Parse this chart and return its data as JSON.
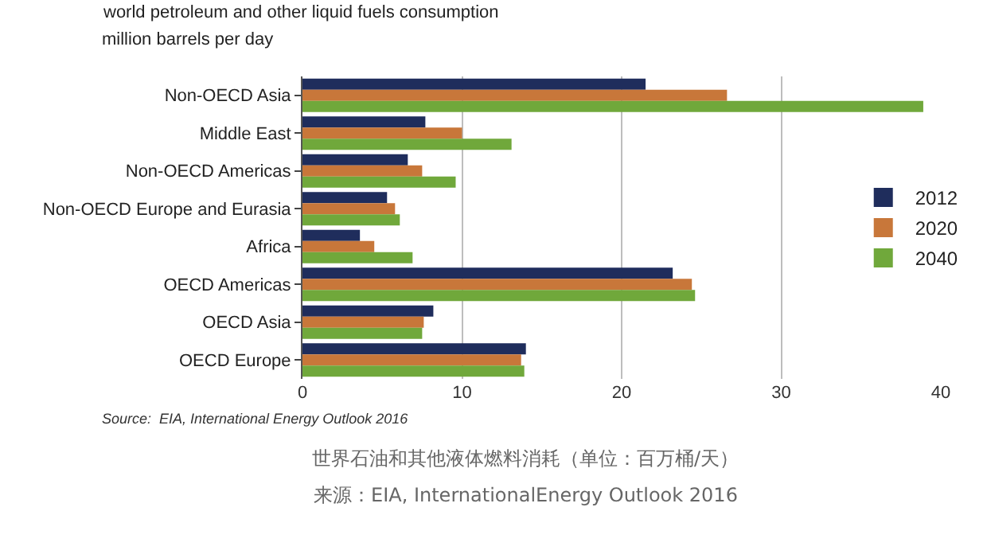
{
  "chart_data": {
    "type": "bar",
    "orientation": "horizontal",
    "title": "world petroleum and other liquid fuels consumption",
    "subtitle": "million barrels per day",
    "categories": [
      "Non-OECD Asia",
      "Middle East",
      "Non-OECD Americas",
      "Non-OECD Europe and Eurasia",
      "Africa",
      "OECD Americas",
      "OECD Asia",
      "OECD Europe"
    ],
    "series": [
      {
        "name": "2012",
        "color": "#1f2d5c",
        "values": [
          21.5,
          7.7,
          6.6,
          5.3,
          3.6,
          23.2,
          8.2,
          14.0
        ]
      },
      {
        "name": "2020",
        "color": "#c8773a",
        "values": [
          26.6,
          10.0,
          7.5,
          5.8,
          4.5,
          24.4,
          7.6,
          13.7
        ]
      },
      {
        "name": "2040",
        "color": "#70a83b",
        "values": [
          38.9,
          13.1,
          9.6,
          6.1,
          6.9,
          24.6,
          7.5,
          13.9
        ]
      }
    ],
    "xlim": [
      0,
      40
    ],
    "xticks": [
      0,
      10,
      20,
      30,
      40
    ],
    "grid": "x",
    "legend": "right",
    "annotations": [
      "Source:  EIA, International Energy Outlook 2016",
      "世界石油和其他液体燃料消耗（单位：百万桶/天）",
      "来源：EIA, InternationalEnergy Outlook 2016"
    ]
  }
}
